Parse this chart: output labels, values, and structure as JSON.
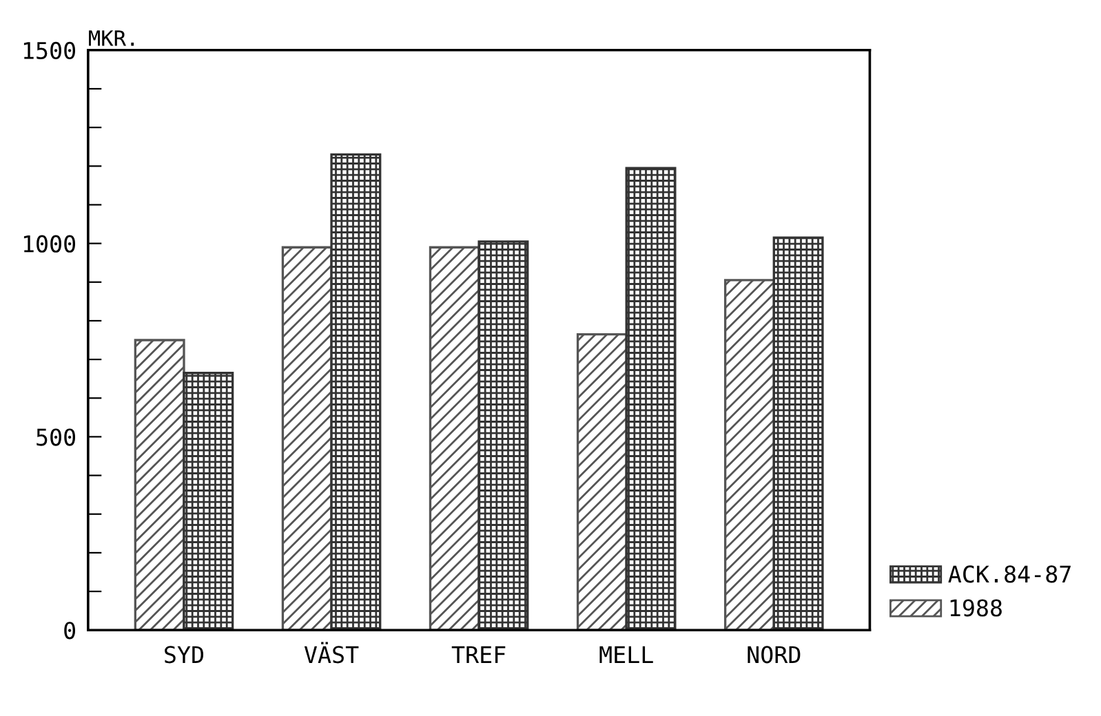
{
  "chart_data": {
    "type": "bar",
    "ylabel": "MKR.",
    "categories": [
      "SYD",
      "VÄST",
      "TREF",
      "MELL",
      "NORD"
    ],
    "series": [
      {
        "name": "1988",
        "color": "#555555",
        "values": [
          750,
          990,
          990,
          765,
          905
        ]
      },
      {
        "name": "ACK.84-87",
        "color": "#333333",
        "values": [
          665,
          1230,
          1005,
          1195,
          1015
        ]
      }
    ],
    "ylim": [
      0,
      1500
    ],
    "yticks": [
      0,
      {
        "value": 100,
        "label": null
      },
      {
        "value": 200,
        "label": null
      },
      {
        "value": 300,
        "label": null
      },
      {
        "value": 400,
        "label": null
      },
      500,
      {
        "value": 600,
        "label": null
      },
      {
        "value": 700,
        "label": null
      },
      {
        "value": 800,
        "label": null
      },
      {
        "value": 900,
        "label": null
      },
      1000,
      {
        "value": 1100,
        "label": null
      },
      {
        "value": 1200,
        "label": null
      },
      {
        "value": 1300,
        "label": null
      },
      {
        "value": 1400,
        "label": null
      },
      1500
    ],
    "grid": false,
    "legend": "bottom right"
  }
}
